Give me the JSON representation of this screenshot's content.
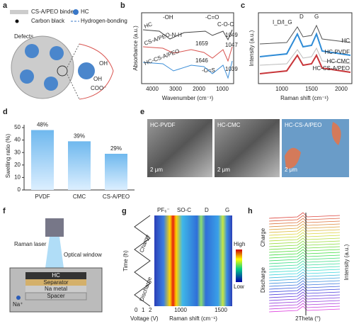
{
  "panels": {
    "a": {
      "label": "a",
      "legend": [
        "CS-A/PEO binder",
        "HC",
        "Carbon black",
        "Hydrogen-bonding"
      ],
      "defects": "Defects",
      "groups": [
        "OH",
        "COO⁻",
        "OH"
      ]
    },
    "b": {
      "label": "b",
      "peaks": [
        "-OH",
        "-C=O",
        "C-O-C",
        "-N-H",
        "-O=S"
      ],
      "traces": [
        "HC",
        "CS-A/PEO",
        "HC-CS-A/PEO"
      ],
      "numbers": [
        "1659",
        "1049",
        "1047",
        "1646",
        "1039"
      ],
      "xticks": [
        4000,
        3000,
        2000,
        1000
      ],
      "xlabel": "Wavenumber (cm⁻¹)",
      "ylabel": "Absorbance (a.u.)"
    },
    "c": {
      "label": "c",
      "bands": [
        "D",
        "G"
      ],
      "ratio": "I_D/I_G",
      "traces": [
        "HC",
        "HC-PVDF",
        "HC-CMC",
        "HC-CS-A/PEO"
      ],
      "xticks": [
        1000,
        1500,
        2000
      ],
      "xlabel": "Raman shift (cm⁻¹)",
      "ylabel": "Intensity (a.u.)"
    },
    "d": {
      "label": "d",
      "categories": [
        "PVDF",
        "CMC",
        "CS-A/PEO"
      ],
      "values": [
        48,
        39,
        29
      ],
      "value_labels": [
        "48%",
        "39%",
        "29%"
      ],
      "ylim": [
        0,
        50
      ],
      "yticks": [
        0,
        10,
        20,
        30,
        40,
        50
      ],
      "ylabel": "Swelling ratio (%)"
    },
    "e": {
      "label": "e",
      "images": [
        "HC-PVDF",
        "HC-CMC",
        "HC-CS-A/PEO"
      ],
      "scale": [
        "2 μm",
        "2 μm",
        "2 μm"
      ]
    },
    "f": {
      "label": "f",
      "parts": [
        "Raman laser",
        "Optical window",
        "HC",
        "Separator",
        "Na metal",
        "Spacer"
      ],
      "ion": "Na⁺"
    },
    "g": {
      "label": "g",
      "bands": [
        "PF₆⁻",
        "SO-C",
        "D",
        "G"
      ],
      "colorbar": [
        "High",
        "Low"
      ],
      "ylabel": "Time (h)",
      "steps": [
        "Charge",
        "Discharge"
      ],
      "voltage_label": "Voltage (V)",
      "voltage_ticks": [
        0,
        1,
        2
      ],
      "xticks": [
        1000,
        1500
      ],
      "xlabel": "Raman shift (cm⁻¹)"
    },
    "h": {
      "label": "h",
      "steps": [
        "Charge",
        "Discharge"
      ],
      "ylabel": "Intensity (a.u.)",
      "xlabel": "2Theta (°)"
    }
  }
}
